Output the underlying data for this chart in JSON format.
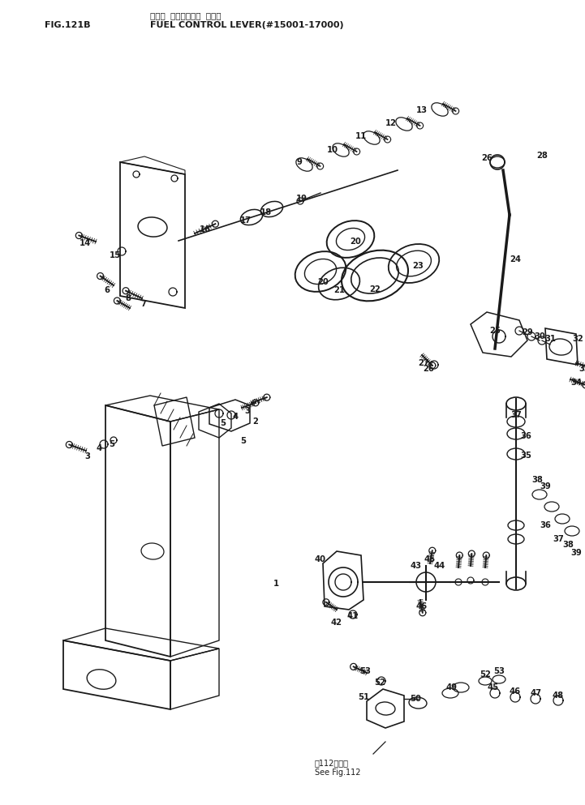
{
  "title_japanese": "フェル コントロール レバー",
  "title_english": "FUEL CONTROL LEVER(#15001-17000)",
  "fig_label": "FIG.121B",
  "bg_color": "#ffffff",
  "line_color": "#1a1a1a",
  "fig_note_line1": "図112図参照",
  "fig_note_line2": "See Fig.112"
}
